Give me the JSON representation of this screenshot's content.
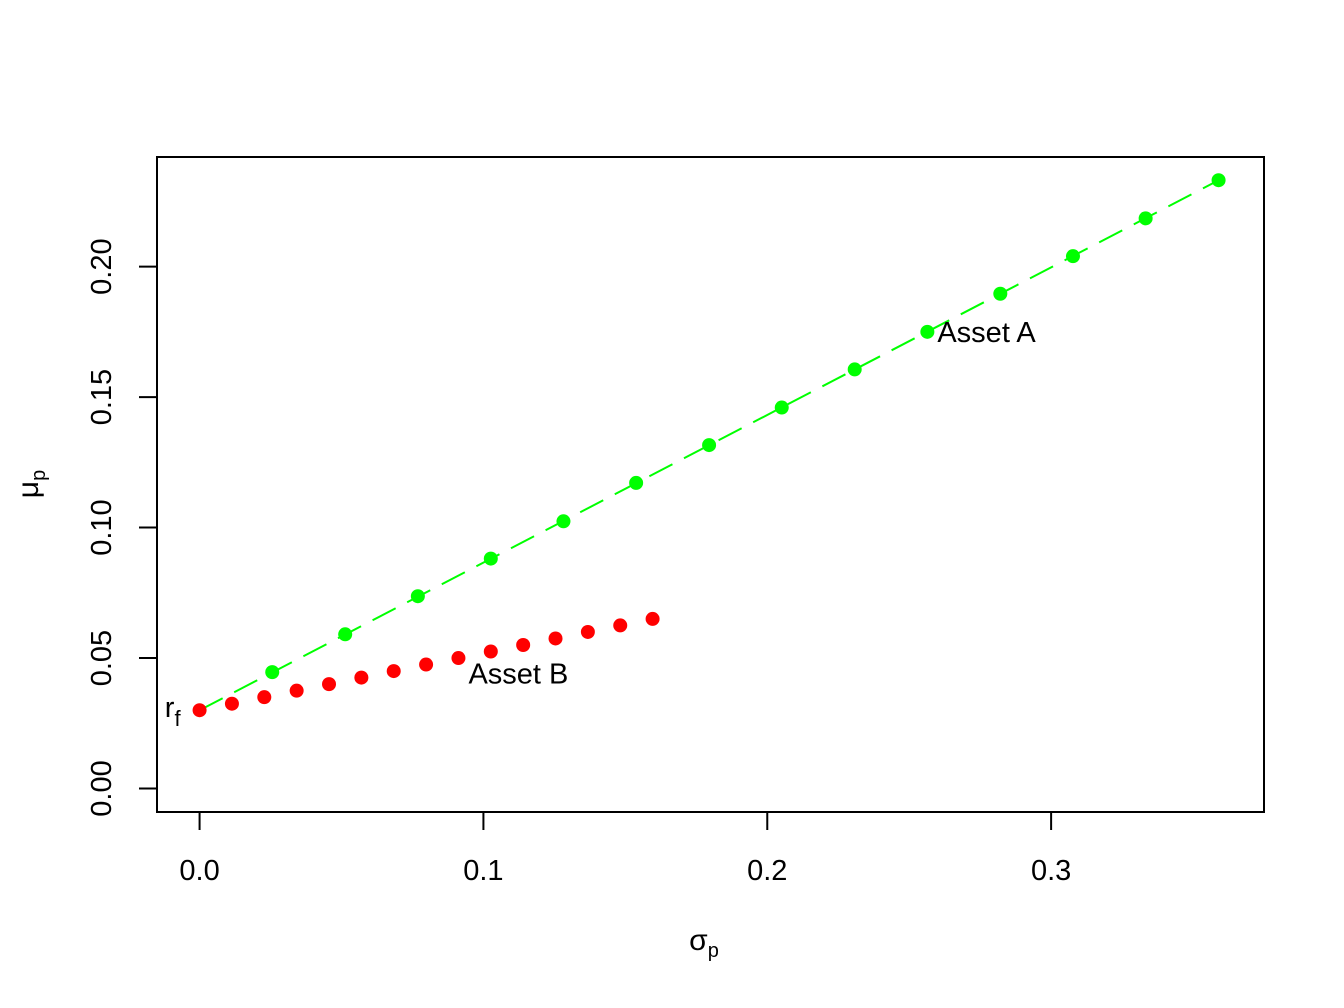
{
  "chart_data": {
    "type": "scatter",
    "title": "",
    "xlabel": {
      "symbol": "σ",
      "sub": "p"
    },
    "ylabel": {
      "symbol": "μ",
      "sub": "p"
    },
    "xlim": [
      -0.015,
      0.375
    ],
    "ylim": [
      -0.009,
      0.242
    ],
    "x_ticks": [
      0.0,
      0.1,
      0.2,
      0.3
    ],
    "x_tick_labels": [
      "0.0",
      "0.1",
      "0.2",
      "0.3"
    ],
    "y_ticks": [
      0.0,
      0.05,
      0.1,
      0.15,
      0.2
    ],
    "y_tick_labels": [
      "0.00",
      "0.05",
      "0.10",
      "0.15",
      "0.20"
    ],
    "grid": false,
    "series": [
      {
        "color": "#00ff00",
        "marker": "filled-circle",
        "x": [
          0.0256,
          0.0513,
          0.0769,
          0.1026,
          0.1282,
          0.1538,
          0.1795,
          0.2051,
          0.2308,
          0.2564,
          0.2821,
          0.3077,
          0.3333,
          0.359
        ],
        "y": [
          0.0446,
          0.0591,
          0.0737,
          0.0881,
          0.1024,
          0.1171,
          0.1316,
          0.146,
          0.1606,
          0.175,
          0.1896,
          0.204,
          0.2185,
          0.2331
        ]
      },
      {
        "color": "#ff0000",
        "marker": "filled-circle",
        "x": [
          0.0,
          0.0114,
          0.0228,
          0.0342,
          0.0456,
          0.057,
          0.0684,
          0.0798,
          0.0912,
          0.1026,
          0.114,
          0.1254,
          0.1368,
          0.1482,
          0.1596
        ],
        "y": [
          0.03,
          0.0325,
          0.035,
          0.0375,
          0.04,
          0.0425,
          0.045,
          0.0475,
          0.05,
          0.0525,
          0.055,
          0.0575,
          0.06,
          0.0625,
          0.065
        ]
      }
    ],
    "lines": [
      {
        "color": "#00ff00",
        "style": "dashed",
        "x": [
          0.0,
          0.359
        ],
        "y": [
          0.03,
          0.2331
        ]
      }
    ],
    "annotations": [
      {
        "text": "Asset A",
        "x": 0.2564,
        "y": 0.175
      },
      {
        "text": "Asset B",
        "x": 0.0912,
        "y": 0.044
      },
      {
        "text": "r",
        "sub": "f",
        "x": 0.0,
        "y": 0.03
      }
    ]
  }
}
